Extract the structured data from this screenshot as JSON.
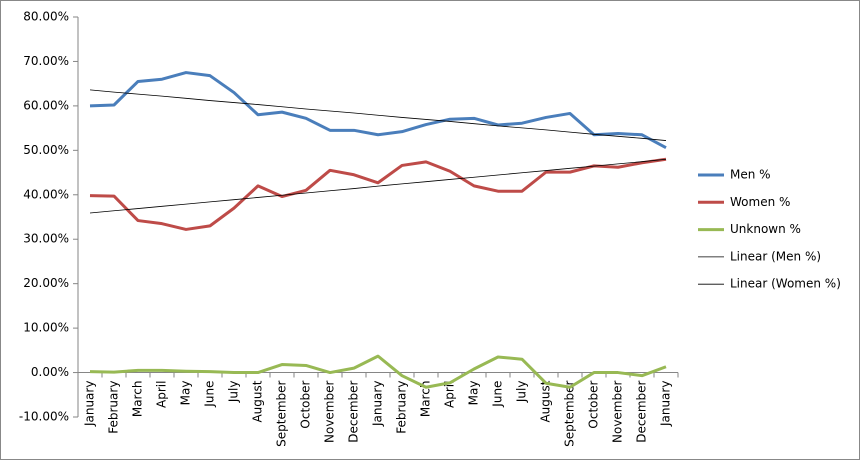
{
  "chart_data": {
    "type": "line",
    "categories": [
      "January",
      "February",
      "March",
      "April",
      "May",
      "June",
      "July",
      "August",
      "September",
      "October",
      "November",
      "December",
      "January",
      "February",
      "March",
      "April",
      "May",
      "June",
      "July",
      "August",
      "September",
      "October",
      "November",
      "December",
      "January"
    ],
    "series": [
      {
        "name": "Men %",
        "color": "#4a7ebb",
        "values": [
          60.0,
          60.2,
          65.5,
          66.0,
          67.5,
          66.8,
          63.0,
          58.0,
          58.6,
          57.2,
          54.5,
          54.5,
          53.5,
          54.2,
          55.8,
          57.0,
          57.2,
          55.7,
          56.1,
          57.4,
          58.3,
          53.5,
          53.8,
          53.5,
          50.6
        ]
      },
      {
        "name": "Women %",
        "color": "#be4b48",
        "values": [
          39.8,
          39.7,
          34.2,
          33.5,
          32.2,
          33.0,
          37.0,
          42.0,
          39.6,
          41.0,
          45.5,
          44.5,
          42.7,
          46.6,
          47.4,
          45.3,
          42.0,
          40.8,
          40.8,
          45.1,
          45.1,
          46.5,
          46.2,
          47.2,
          48.0
        ]
      },
      {
        "name": "Unknown %",
        "color": "#98b954",
        "values": [
          0.2,
          0.1,
          0.5,
          0.5,
          0.3,
          0.2,
          0.0,
          0.0,
          1.8,
          1.6,
          0.0,
          1.0,
          3.7,
          -0.7,
          -3.3,
          -2.3,
          0.8,
          3.5,
          3.0,
          -2.4,
          -3.3,
          0.0,
          0.0,
          -0.7,
          1.3
        ]
      },
      {
        "name": "Linear (Men %)",
        "color": "#000000",
        "values": [
          63.6,
          63.1,
          62.65,
          62.2,
          61.7,
          61.2,
          60.75,
          60.3,
          59.8,
          59.3,
          58.85,
          58.4,
          57.9,
          57.4,
          56.95,
          56.5,
          56.0,
          55.5,
          55.05,
          54.6,
          54.1,
          53.6,
          53.15,
          52.7,
          52.2
        ]
      },
      {
        "name": "Linear (Women %)",
        "color": "#000000",
        "values": [
          35.9,
          36.4,
          36.9,
          37.4,
          37.9,
          38.4,
          38.9,
          39.4,
          39.9,
          40.4,
          40.9,
          41.4,
          41.95,
          42.45,
          42.95,
          43.45,
          43.95,
          44.45,
          44.95,
          45.45,
          45.95,
          46.45,
          46.95,
          47.45,
          48.0
        ]
      }
    ],
    "ylim": [
      -10,
      80
    ],
    "yticks": [
      {
        "value": -10,
        "label": "-10.00%"
      },
      {
        "value": 0,
        "label": "0.00%"
      },
      {
        "value": 10,
        "label": "10.00%"
      },
      {
        "value": 20,
        "label": "20.00%"
      },
      {
        "value": 30,
        "label": "30.00%"
      },
      {
        "value": 40,
        "label": "40.00%"
      },
      {
        "value": 50,
        "label": "50.00%"
      },
      {
        "value": 60,
        "label": "60.00%"
      },
      {
        "value": 70,
        "label": "70.00%"
      },
      {
        "value": 80,
        "label": "80.00%"
      }
    ],
    "grid": false,
    "legend": "right"
  }
}
